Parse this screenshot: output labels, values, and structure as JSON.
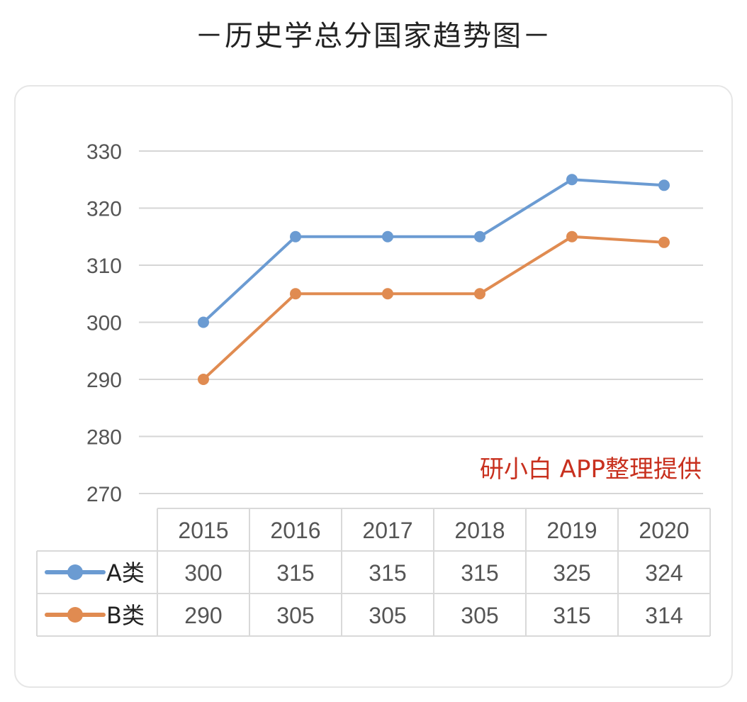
{
  "title": "－历史学总分国家趋势图－",
  "watermark": "研小白 APP整理提供",
  "chart_data": {
    "type": "line",
    "title": "－历史学总分国家趋势图－",
    "categories": [
      "2015",
      "2016",
      "2017",
      "2018",
      "2019",
      "2020"
    ],
    "series": [
      {
        "name": "A类",
        "color": "#6b9bd2",
        "values": [
          300,
          315,
          315,
          315,
          325,
          324
        ]
      },
      {
        "name": "B类",
        "color": "#e08b51",
        "values": [
          290,
          305,
          305,
          305,
          315,
          314
        ]
      }
    ],
    "ylim": [
      270,
      330
    ],
    "yticks": [
      330,
      320,
      310,
      300,
      290,
      280,
      270
    ],
    "grid": true,
    "data_table": true
  }
}
